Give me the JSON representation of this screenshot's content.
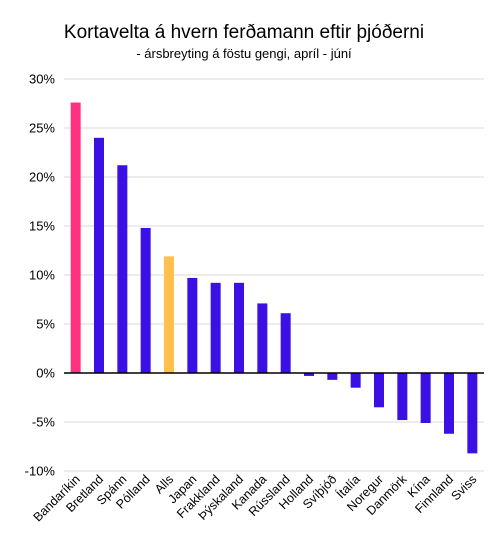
{
  "chart_data": {
    "type": "bar",
    "title": "Kortavelta á hvern ferðamann eftir þjóðerni",
    "subtitle": "- ársbreyting á föstu gengi, apríl - júní",
    "categories": [
      "Bandaríkin",
      "Bretland",
      "Spánn",
      "Pólland",
      "Alls",
      "Japan",
      "Frakkland",
      "Þýskaland",
      "Kanada",
      "Rússland",
      "Holland",
      "Svíþjóð",
      "Ítalía",
      "Noregur",
      "Danmörk",
      "Kína",
      "Finnland",
      "Sviss"
    ],
    "values": [
      27.6,
      24.0,
      21.2,
      14.8,
      11.9,
      9.7,
      9.2,
      9.2,
      7.1,
      6.1,
      -0.3,
      -0.7,
      -1.5,
      -3.5,
      -4.8,
      -5.1,
      -6.2,
      -8.2
    ],
    "colors": [
      "#ff3381",
      "#3a10e5",
      "#3a10e5",
      "#3a10e5",
      "#ffc04d",
      "#3a10e5",
      "#3a10e5",
      "#3a10e5",
      "#3a10e5",
      "#3a10e5",
      "#3a10e5",
      "#3a10e5",
      "#3a10e5",
      "#3a10e5",
      "#3a10e5",
      "#3a10e5",
      "#3a10e5",
      "#3a10e5"
    ],
    "yticks": [
      "30%",
      "25%",
      "20%",
      "15%",
      "10%",
      "5%",
      "0%",
      "-5%",
      "-10%"
    ],
    "ylim": [
      -10,
      30
    ],
    "grid": true,
    "xlabel": "",
    "ylabel": ""
  }
}
